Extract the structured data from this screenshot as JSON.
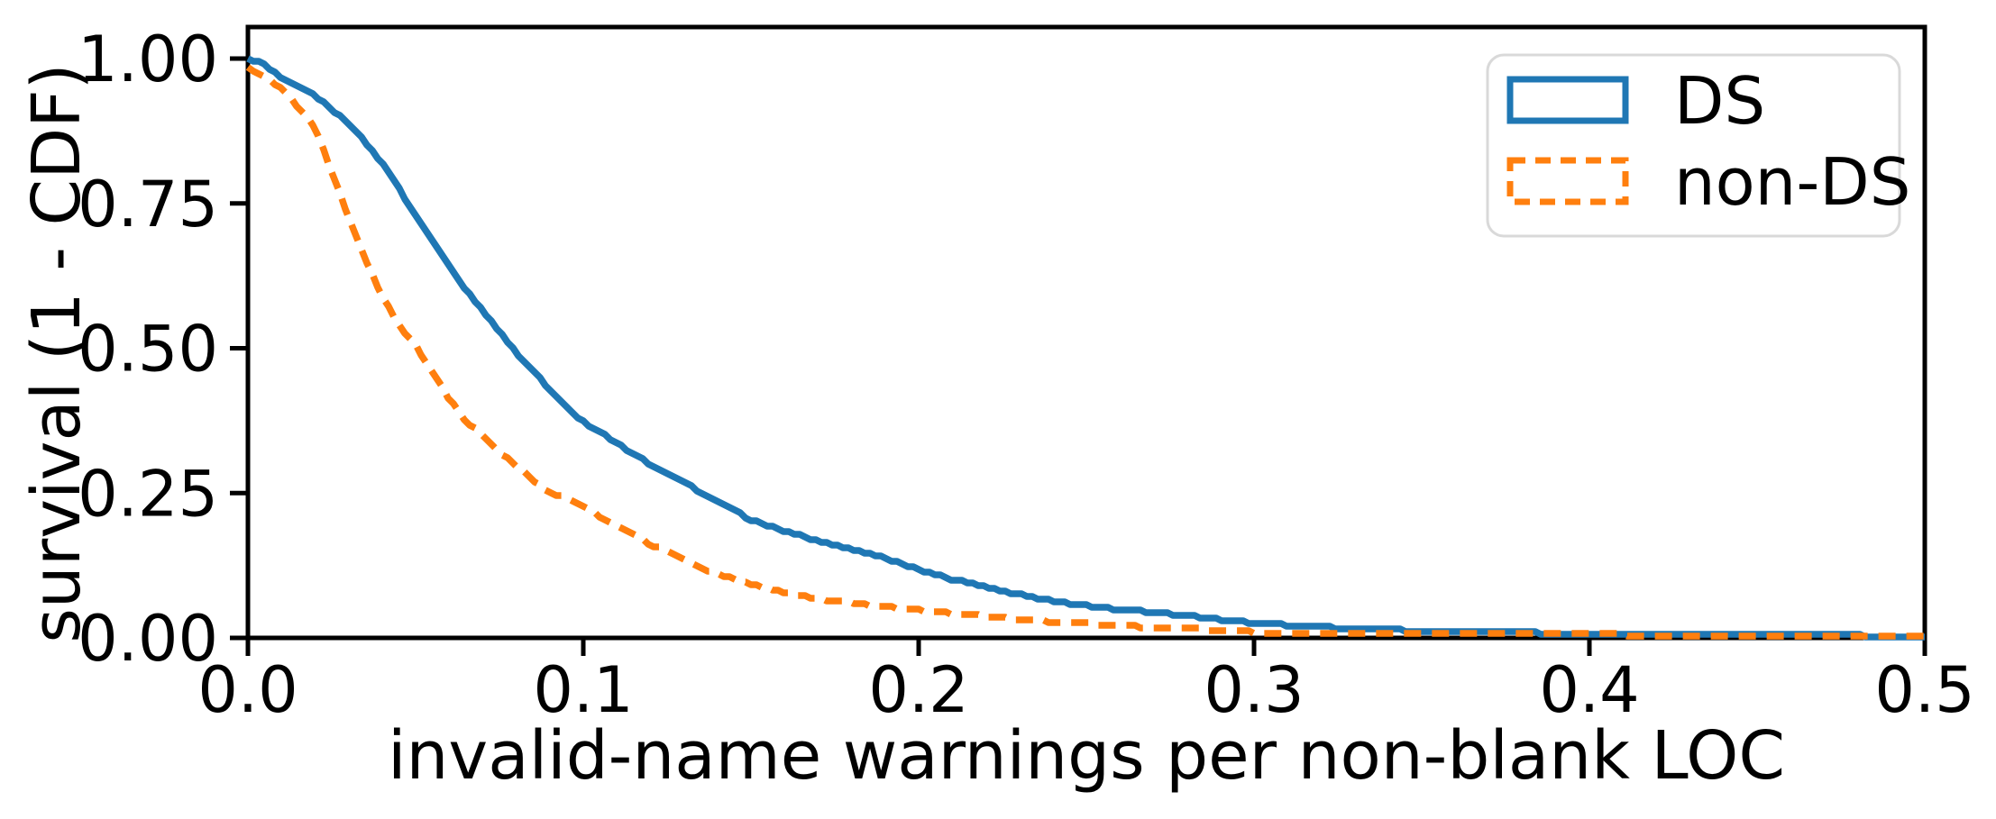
{
  "figure": {
    "background": "#ffffff",
    "spine_color": "#000000",
    "legend_border_color": "#d9d9d9"
  },
  "chart_data": {
    "type": "line",
    "title": "",
    "xlabel": "invalid-name warnings per non-blank LOC",
    "ylabel": "survival (1 - CDF)",
    "xlim": [
      0.0,
      0.5
    ],
    "ylim": [
      0.0,
      1.0
    ],
    "xticks": [
      "0.0",
      "0.1",
      "0.2",
      "0.3",
      "0.4",
      "0.5"
    ],
    "yticks": [
      "0.00",
      "0.25",
      "0.50",
      "0.75",
      "1.00"
    ],
    "grid": false,
    "legend_position": "upper right",
    "series": [
      {
        "name": "DS",
        "color": "#1f77b4",
        "style": "solid",
        "points": [
          [
            0.0,
            1.0
          ],
          [
            0.005,
            0.99
          ],
          [
            0.01,
            0.967
          ],
          [
            0.015,
            0.951
          ],
          [
            0.02,
            0.935
          ],
          [
            0.025,
            0.913
          ],
          [
            0.03,
            0.888
          ],
          [
            0.035,
            0.856
          ],
          [
            0.04,
            0.82
          ],
          [
            0.045,
            0.776
          ],
          [
            0.05,
            0.73
          ],
          [
            0.055,
            0.686
          ],
          [
            0.06,
            0.642
          ],
          [
            0.065,
            0.601
          ],
          [
            0.07,
            0.565
          ],
          [
            0.075,
            0.53
          ],
          [
            0.08,
            0.493
          ],
          [
            0.085,
            0.46
          ],
          [
            0.09,
            0.43
          ],
          [
            0.095,
            0.4
          ],
          [
            0.1,
            0.373
          ],
          [
            0.105,
            0.355
          ],
          [
            0.11,
            0.335
          ],
          [
            0.115,
            0.318
          ],
          [
            0.12,
            0.3
          ],
          [
            0.125,
            0.284
          ],
          [
            0.13,
            0.268
          ],
          [
            0.135,
            0.252
          ],
          [
            0.14,
            0.237
          ],
          [
            0.145,
            0.22
          ],
          [
            0.15,
            0.204
          ],
          [
            0.155,
            0.194
          ],
          [
            0.16,
            0.185
          ],
          [
            0.165,
            0.176
          ],
          [
            0.17,
            0.168
          ],
          [
            0.175,
            0.16
          ],
          [
            0.18,
            0.152
          ],
          [
            0.185,
            0.146
          ],
          [
            0.19,
            0.137
          ],
          [
            0.195,
            0.128
          ],
          [
            0.2,
            0.118
          ],
          [
            0.21,
            0.101
          ],
          [
            0.22,
            0.088
          ],
          [
            0.23,
            0.075
          ],
          [
            0.24,
            0.064
          ],
          [
            0.25,
            0.056
          ],
          [
            0.26,
            0.049
          ],
          [
            0.27,
            0.044
          ],
          [
            0.28,
            0.039
          ],
          [
            0.29,
            0.032
          ],
          [
            0.3,
            0.026
          ],
          [
            0.31,
            0.022
          ],
          [
            0.32,
            0.019
          ],
          [
            0.33,
            0.016
          ],
          [
            0.34,
            0.014
          ],
          [
            0.35,
            0.012
          ],
          [
            0.36,
            0.011
          ],
          [
            0.37,
            0.01
          ],
          [
            0.38,
            0.009
          ],
          [
            0.39,
            0.008
          ],
          [
            0.4,
            0.007
          ],
          [
            0.42,
            0.006
          ],
          [
            0.44,
            0.005
          ],
          [
            0.46,
            0.004
          ],
          [
            0.48,
            0.004
          ],
          [
            0.5,
            0.003
          ]
        ]
      },
      {
        "name": "non-DS",
        "color": "#ff7f0e",
        "style": "dashed",
        "points": [
          [
            0.0,
            0.985
          ],
          [
            0.005,
            0.97
          ],
          [
            0.01,
            0.947
          ],
          [
            0.015,
            0.917
          ],
          [
            0.02,
            0.88
          ],
          [
            0.025,
            0.805
          ],
          [
            0.03,
            0.725
          ],
          [
            0.035,
            0.655
          ],
          [
            0.04,
            0.59
          ],
          [
            0.045,
            0.54
          ],
          [
            0.05,
            0.505
          ],
          [
            0.055,
            0.46
          ],
          [
            0.06,
            0.412
          ],
          [
            0.065,
            0.375
          ],
          [
            0.07,
            0.35
          ],
          [
            0.075,
            0.322
          ],
          [
            0.08,
            0.297
          ],
          [
            0.085,
            0.272
          ],
          [
            0.09,
            0.252
          ],
          [
            0.095,
            0.24
          ],
          [
            0.1,
            0.228
          ],
          [
            0.105,
            0.21
          ],
          [
            0.11,
            0.195
          ],
          [
            0.115,
            0.178
          ],
          [
            0.12,
            0.162
          ],
          [
            0.125,
            0.148
          ],
          [
            0.13,
            0.134
          ],
          [
            0.135,
            0.122
          ],
          [
            0.14,
            0.11
          ],
          [
            0.145,
            0.101
          ],
          [
            0.15,
            0.093
          ],
          [
            0.155,
            0.085
          ],
          [
            0.16,
            0.078
          ],
          [
            0.165,
            0.073
          ],
          [
            0.17,
            0.068
          ],
          [
            0.175,
            0.064
          ],
          [
            0.18,
            0.061
          ],
          [
            0.185,
            0.057
          ],
          [
            0.19,
            0.054
          ],
          [
            0.195,
            0.051
          ],
          [
            0.2,
            0.048
          ],
          [
            0.21,
            0.042
          ],
          [
            0.22,
            0.037
          ],
          [
            0.23,
            0.032
          ],
          [
            0.24,
            0.028
          ],
          [
            0.25,
            0.025
          ],
          [
            0.26,
            0.021
          ],
          [
            0.27,
            0.018
          ],
          [
            0.28,
            0.016
          ],
          [
            0.29,
            0.013
          ],
          [
            0.3,
            0.01
          ],
          [
            0.32,
            0.009
          ],
          [
            0.34,
            0.008
          ],
          [
            0.36,
            0.008
          ],
          [
            0.38,
            0.007
          ],
          [
            0.4,
            0.006
          ],
          [
            0.42,
            0.005
          ],
          [
            0.44,
            0.005
          ],
          [
            0.46,
            0.004
          ],
          [
            0.48,
            0.004
          ],
          [
            0.5,
            0.003
          ]
        ]
      }
    ]
  }
}
